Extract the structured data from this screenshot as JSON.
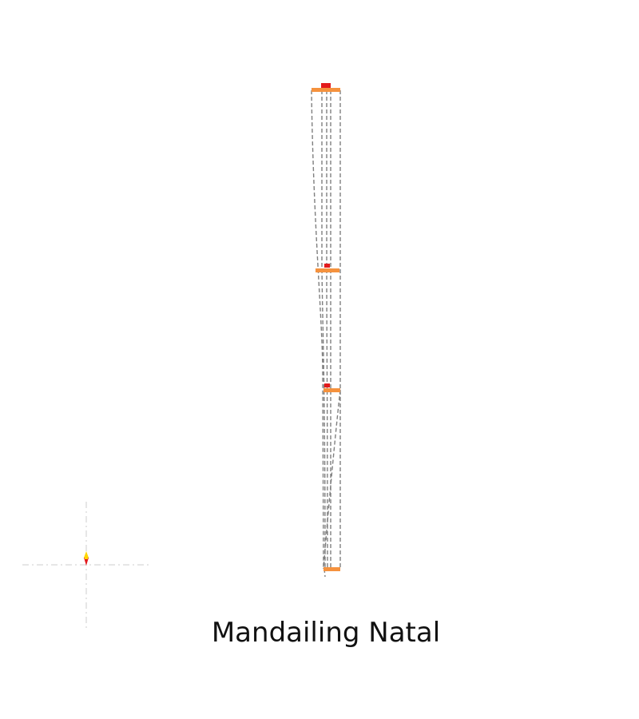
{
  "title": "Mandailing Natal",
  "colors": {
    "background": "#ffffff",
    "band": "#f5923e",
    "marker": "#e31a1c",
    "dashed_line": "#7f7f7f",
    "axis_cross": "#cccccc",
    "compass_north": "#ffd700",
    "compass_south": "#e31a1c"
  },
  "icons": {
    "compass": "compass-rose-icon"
  }
}
